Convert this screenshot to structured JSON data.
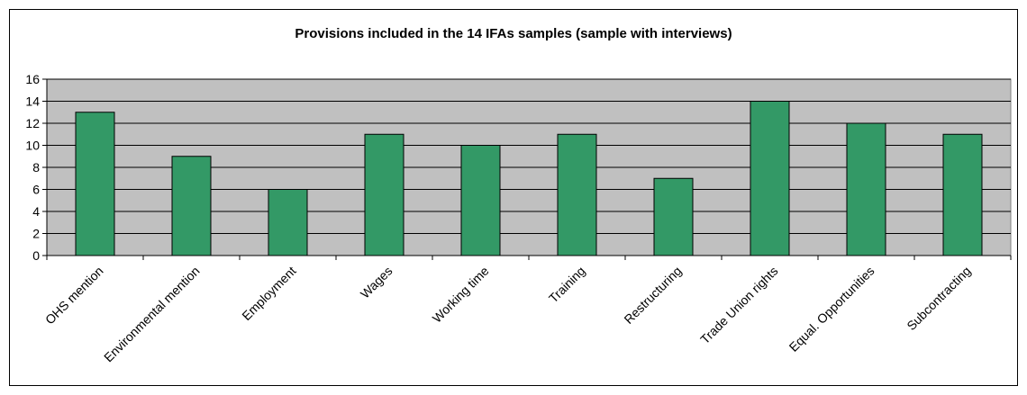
{
  "chart_data": {
    "type": "bar",
    "title": "Provisions included in the 14 IFAs samples (sample with interviews)",
    "categories": [
      "OHS mention",
      "Environmental mention",
      "Employment",
      "Wages",
      "Working time",
      "Training",
      "Restructuring",
      "Trade Union rights",
      "Equal. Opportunities",
      "Subcontracting"
    ],
    "values": [
      13,
      9,
      6,
      11,
      10,
      11,
      7,
      14,
      12,
      11
    ],
    "ylim": [
      0,
      16
    ],
    "yticks": [
      0,
      2,
      4,
      6,
      8,
      10,
      12,
      14,
      16
    ],
    "xlabel": "",
    "ylabel": "",
    "grid": true,
    "legend": "none",
    "colors": {
      "bar": "#339966",
      "plot_bg": "#c0c0c0",
      "grid": "#000000"
    }
  }
}
